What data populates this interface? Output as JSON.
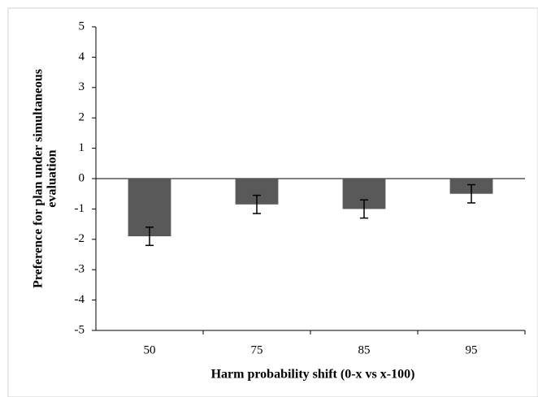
{
  "chart_data": {
    "type": "bar",
    "x_label": "Harm probability shift (0-x vs x-100)",
    "y_label": [
      "Preference for plan under simultaneous",
      "evaluation"
    ],
    "categories": [
      "50",
      "75",
      "85",
      "95"
    ],
    "values": [
      -1.9,
      -0.85,
      -1.0,
      -0.5
    ],
    "errors": [
      0.3,
      0.3,
      0.3,
      0.3
    ],
    "color": "#595959",
    "ylim": [
      -5,
      5
    ],
    "yticks": [
      -5,
      -4,
      -3,
      -2,
      -1,
      0,
      1,
      2,
      3,
      4,
      5
    ]
  }
}
